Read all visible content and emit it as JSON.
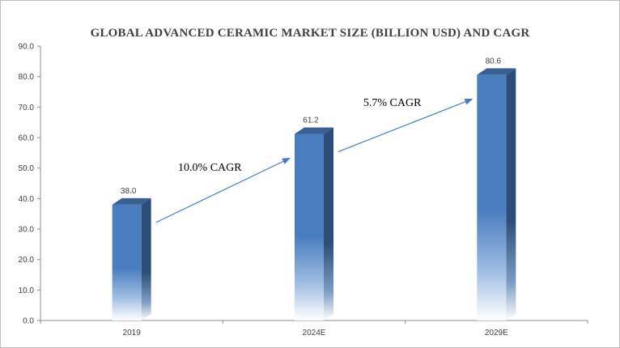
{
  "chart_data": {
    "type": "bar",
    "title": "GLOBAL ADVANCED CERAMIC MARKET SIZE (BILLION USD) AND CAGR",
    "categories": [
      "2019",
      "2024E",
      "2029E"
    ],
    "values": [
      38.0,
      61.2,
      80.6
    ],
    "value_labels": [
      "38.0",
      "61.2",
      "80.6"
    ],
    "ylim": [
      0,
      90
    ],
    "y_ticks": [
      "0.0",
      "10.0",
      "20.0",
      "30.0",
      "40.0",
      "50.0",
      "60.0",
      "70.0",
      "80.0",
      "90.0"
    ],
    "xlabel": "",
    "ylabel": "",
    "grid": false,
    "annotations": [
      {
        "text": "10.0% CAGR",
        "from": "2019",
        "to": "2024E"
      },
      {
        "text": "5.7% CAGR",
        "from": "2024E",
        "to": "2029E"
      }
    ],
    "colors": {
      "bar_front": "#4a7dbf",
      "bar_side": "#2c4d78",
      "bar_top": "#3a5f92",
      "arrow": "#4a7dbf",
      "axis": "#8c8c8c"
    }
  }
}
